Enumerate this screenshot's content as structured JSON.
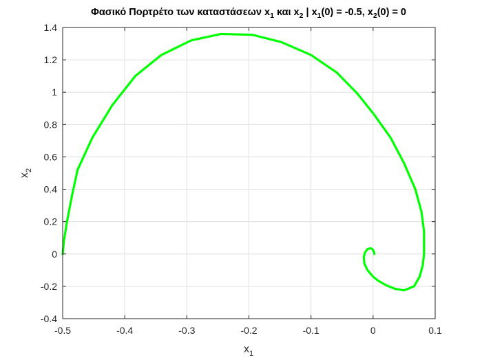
{
  "chart_data": {
    "type": "line",
    "title": "Φασικό Πορτρέτο των καταστάσεων x1 και x2 | x1(0) = -0.5, x2(0) = 0",
    "title_parts": [
      {
        "text": "Φασικό Πορτρέτο των καταστάσεων x",
        "sub": false
      },
      {
        "text": "1",
        "sub": true
      },
      {
        "text": " και x",
        "sub": false
      },
      {
        "text": "2",
        "sub": true
      },
      {
        "text": " | x",
        "sub": false
      },
      {
        "text": "1",
        "sub": true
      },
      {
        "text": "(0) = -0.5, x",
        "sub": false
      },
      {
        "text": "2",
        "sub": true
      },
      {
        "text": "(0) = 0",
        "sub": false
      }
    ],
    "xlabel": {
      "base": "x",
      "sub": "1"
    },
    "ylabel": {
      "base": "x",
      "sub": "2"
    },
    "xlim": [
      -0.5,
      0.1
    ],
    "ylim": [
      -0.4,
      1.4
    ],
    "xticks": [
      -0.5,
      -0.4,
      -0.3,
      -0.2,
      -0.1,
      0,
      0.1
    ],
    "xtick_labels": [
      "-0.5",
      "-0.4",
      "-0.3",
      "-0.2",
      "-0.1",
      "0",
      "0.1"
    ],
    "yticks": [
      -0.4,
      -0.2,
      0,
      0.2,
      0.4,
      0.6,
      0.8,
      1,
      1.2,
      1.4
    ],
    "ytick_labels": [
      "-0.4",
      "-0.2",
      "0",
      "0.2",
      "0.4",
      "0.6",
      "0.8",
      "1",
      "1.2",
      "1.4"
    ],
    "grid": true,
    "legend": "none",
    "series": [
      {
        "color": "#00ff00",
        "x": [
          -0.5,
          -0.498,
          -0.493,
          -0.485,
          -0.476,
          -0.452,
          -0.42,
          -0.383,
          -0.341,
          -0.293,
          -0.245,
          -0.195,
          -0.148,
          -0.1,
          -0.058,
          -0.025,
          0.0,
          0.028,
          0.05,
          0.068,
          0.078,
          0.082,
          0.082,
          0.08,
          0.075,
          0.066,
          0.05,
          0.035,
          0.022,
          0.008,
          0.0,
          -0.009,
          -0.014,
          -0.015,
          -0.013,
          -0.009,
          -0.004,
          -0.001,
          0.001,
          0.002,
          0.002
        ],
        "y": [
          0.0,
          0.08,
          0.2,
          0.36,
          0.52,
          0.72,
          0.92,
          1.1,
          1.23,
          1.32,
          1.36,
          1.355,
          1.31,
          1.23,
          1.12,
          0.99,
          0.87,
          0.72,
          0.56,
          0.4,
          0.26,
          0.14,
          0.0,
          -0.07,
          -0.14,
          -0.2,
          -0.225,
          -0.215,
          -0.195,
          -0.165,
          -0.14,
          -0.1,
          -0.06,
          -0.02,
          0.01,
          0.03,
          0.035,
          0.03,
          0.015,
          0.005,
          0.0
        ]
      }
    ]
  }
}
